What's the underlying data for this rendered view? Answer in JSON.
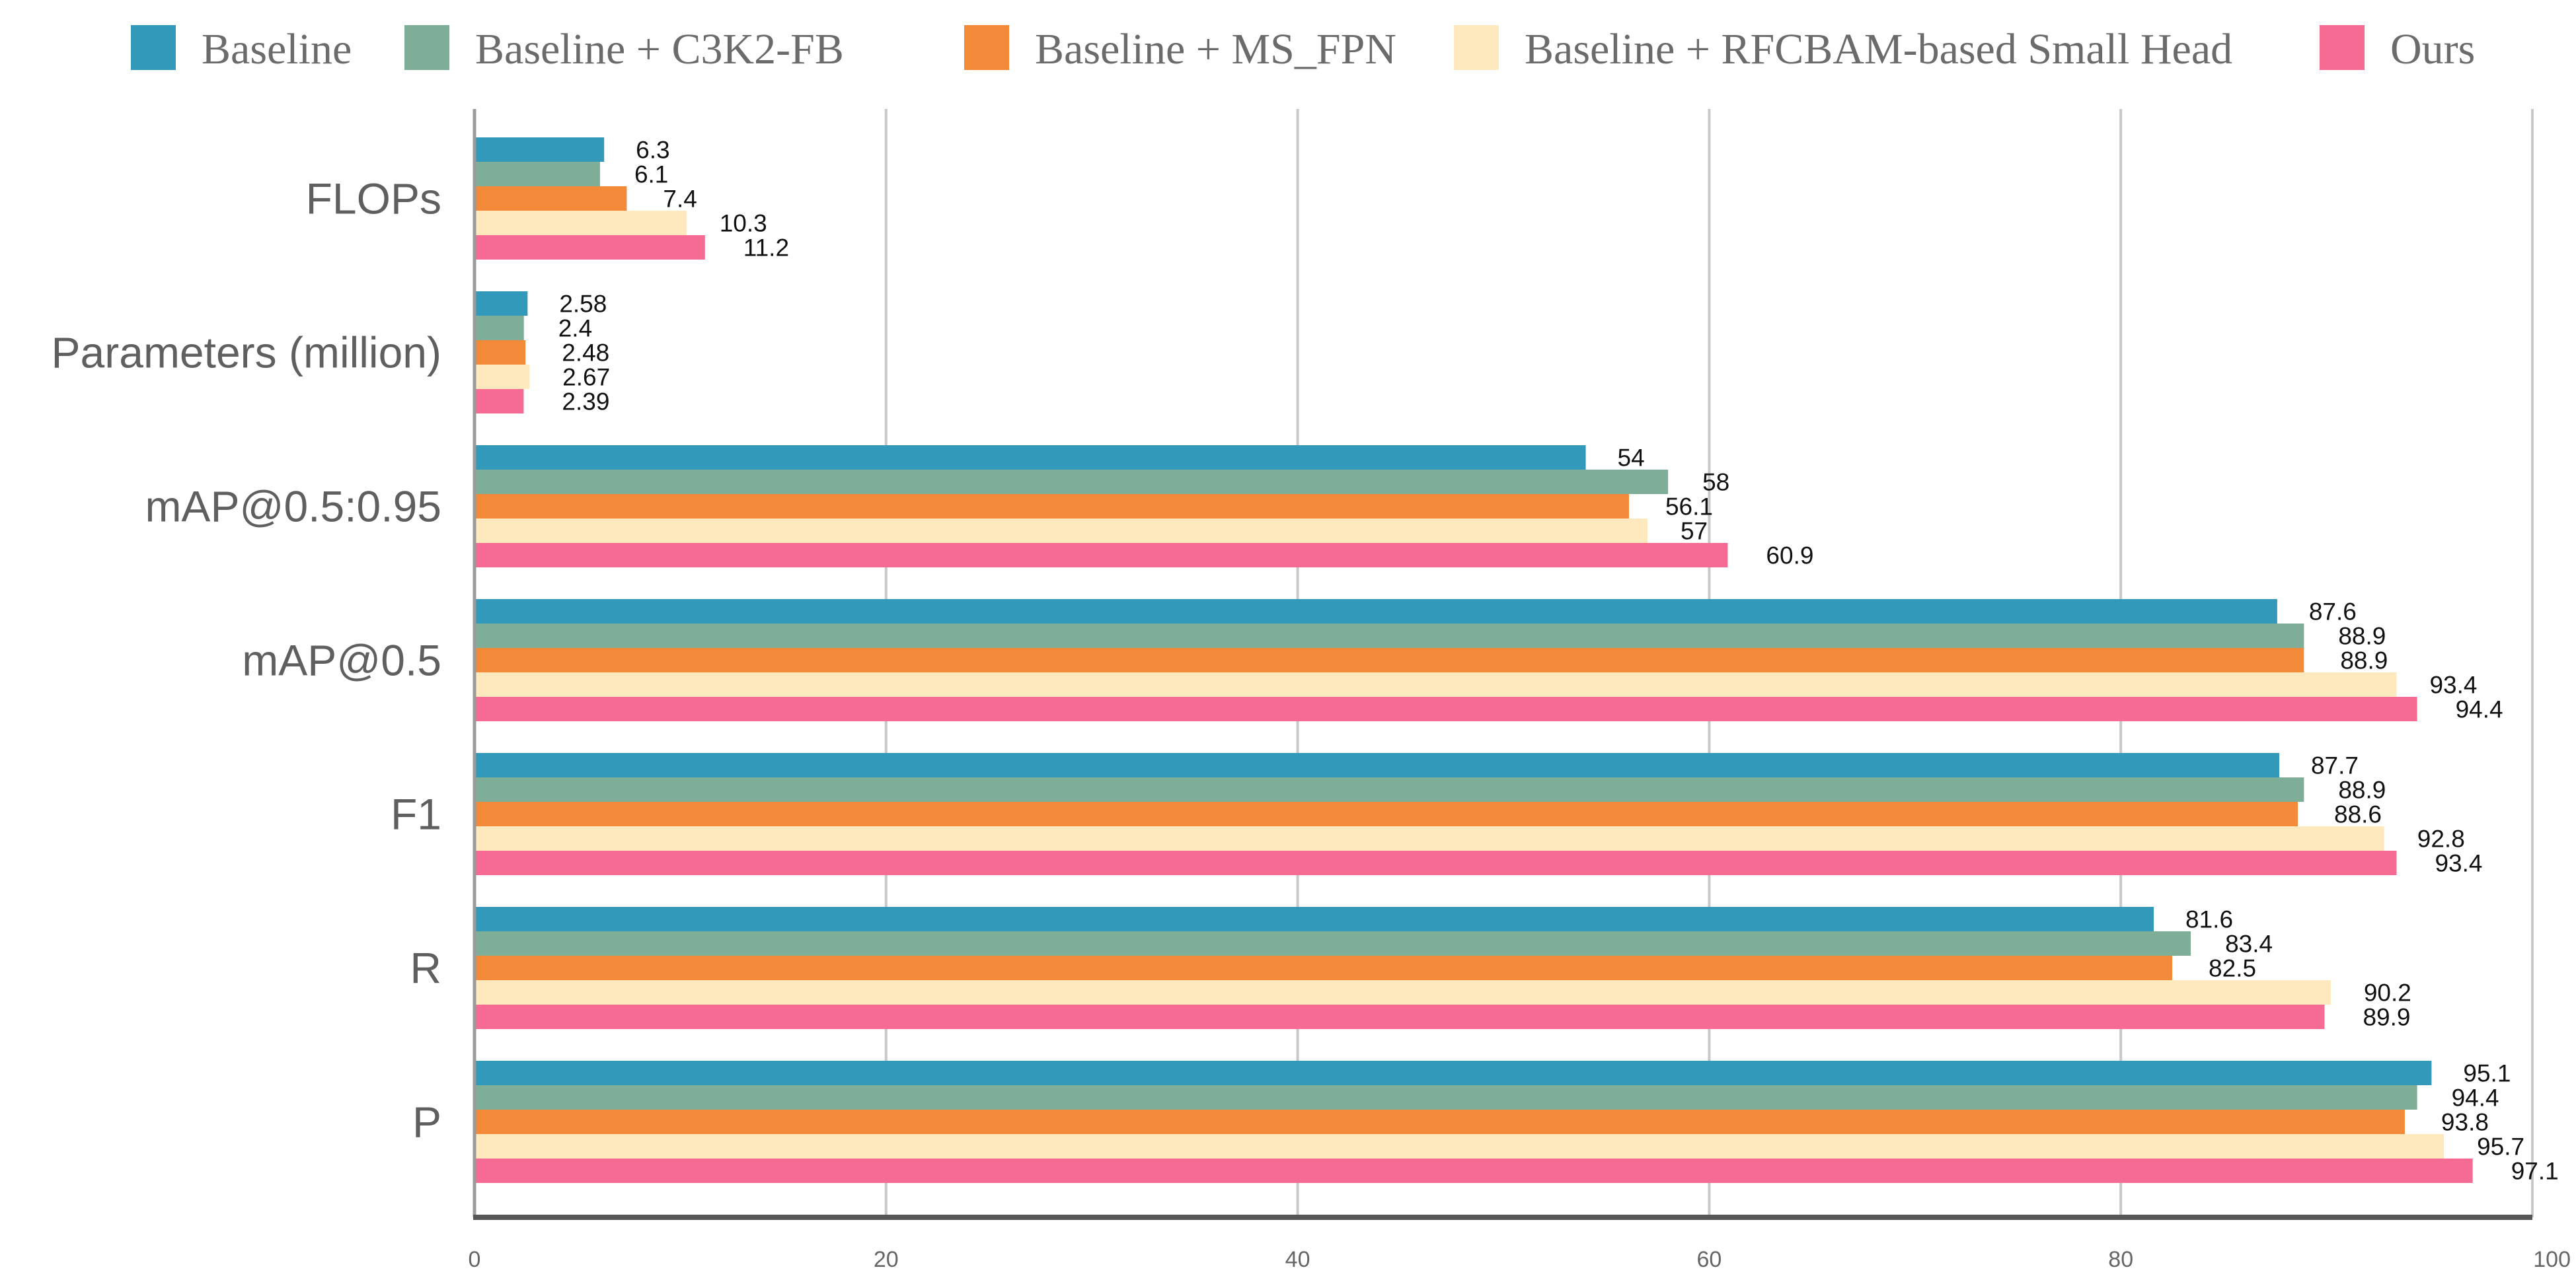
{
  "chart_data": {
    "type": "bar",
    "orientation": "horizontal",
    "categories": [
      "FLOPs",
      "Parameters (million)",
      "mAP@0.5:0.95",
      "mAP@0.5",
      "F1",
      "R",
      "P"
    ],
    "series": [
      {
        "name": "Baseline",
        "color": "#3399bb",
        "values": [
          6.3,
          2.58,
          54,
          87.6,
          87.7,
          81.6,
          95.1
        ],
        "labels": [
          "6.3",
          "2.58",
          "54",
          "87.6",
          "87.7",
          "81.6",
          "95.1"
        ]
      },
      {
        "name": "Baseline + C3K2-FB",
        "color": "#7fae98",
        "values": [
          6.1,
          2.4,
          58,
          88.9,
          88.9,
          83.4,
          94.4
        ],
        "labels": [
          "6.1",
          "2.4",
          "58",
          "88.9",
          "88.9",
          "83.4",
          "94.4"
        ]
      },
      {
        "name": "Baseline + MS_FPN",
        "color": "#f28a3a",
        "values": [
          7.4,
          2.48,
          56.1,
          88.9,
          88.6,
          82.5,
          93.8
        ],
        "labels": [
          "7.4",
          "2.48",
          "56.1",
          "88.9",
          "88.6",
          "82.5",
          "93.8"
        ]
      },
      {
        "name": "Baseline + RFCBAM-based Small Head",
        "color": "#fde9bd",
        "values": [
          10.3,
          2.67,
          57,
          93.4,
          92.8,
          90.2,
          95.7
        ],
        "labels": [
          "10.3",
          "2.67",
          "57",
          "93.4",
          "92.8",
          "90.2",
          "95.7"
        ]
      },
      {
        "name": "Ours",
        "color": "#f56b93",
        "values": [
          11.2,
          2.39,
          60.9,
          94.4,
          93.4,
          89.9,
          97.1
        ],
        "labels": [
          "11.2",
          "2.39",
          "60.9",
          "94.4",
          "93.4",
          "89.9",
          "97.1"
        ]
      }
    ],
    "xlim": [
      0,
      100
    ],
    "xticks": [
      "0",
      "20",
      "40",
      "60",
      "80",
      "100"
    ],
    "grid": true,
    "legend_position": "top",
    "title": "",
    "xlabel": "",
    "ylabel": ""
  }
}
